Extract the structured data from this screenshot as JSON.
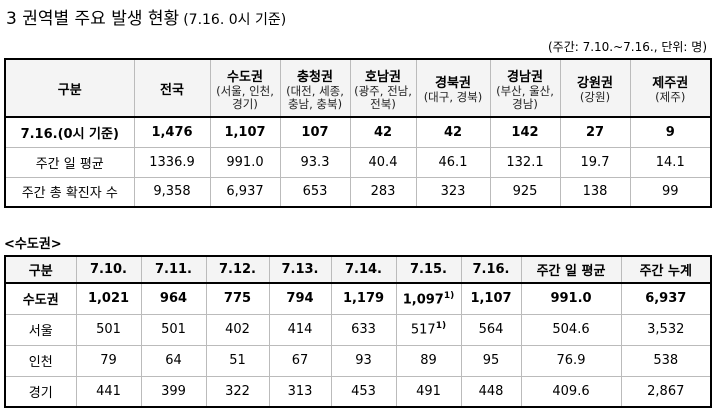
{
  "title": "3 권역별 주요 발생 현황",
  "title_note": "(7.16. 0시 기준)",
  "unit_note": "(주간: 7.10.~7.16., 단위: 명)",
  "table1": {
    "header": [
      {
        "name": "구분"
      },
      {
        "name": "전국"
      },
      {
        "name": "수도권",
        "sub": "(서울, 인천, 경기)"
      },
      {
        "name": "충청권",
        "sub": "(대전, 세종, 충남, 충북)"
      },
      {
        "name": "호남권",
        "sub": "(광주, 전남, 전북)"
      },
      {
        "name": "경북권",
        "sub": "(대구, 경북)"
      },
      {
        "name": "경남권",
        "sub": "(부산, 울산, 경남)"
      },
      {
        "name": "강원권",
        "sub": "(강원)"
      },
      {
        "name": "제주권",
        "sub": "(제주)"
      }
    ],
    "rows": [
      [
        "7.16.(0시 기준)",
        "1,476",
        "1,107",
        "107",
        "42",
        "42",
        "142",
        "27",
        "9"
      ],
      [
        "주간 일 평균",
        "1336.9",
        "991.0",
        "93.3",
        "40.4",
        "46.1",
        "132.1",
        "19.7",
        "14.1"
      ],
      [
        "주간 총 확진자 수",
        "9,358",
        "6,937",
        "653",
        "283",
        "323",
        "925",
        "138",
        "99"
      ]
    ]
  },
  "section2_label": "<수도권>",
  "table2": {
    "header": [
      "구분",
      "7.10.",
      "7.11.",
      "7.12.",
      "7.13.",
      "7.14.",
      "7.15.",
      "7.16.",
      "주간 일 평균",
      "주간 누계"
    ],
    "rows": [
      [
        "수도권",
        "1,021",
        "964",
        "775",
        "794",
        "1,179",
        {
          "text": "1,097",
          "sup": "1)"
        },
        "1,107",
        "991.0",
        "6,937"
      ],
      [
        "서울",
        "501",
        "501",
        "402",
        "414",
        "633",
        {
          "text": "517",
          "sup": "1)"
        },
        "564",
        "504.6",
        "3,532"
      ],
      [
        "인천",
        "79",
        "64",
        "51",
        "67",
        "93",
        "89",
        "95",
        "76.9",
        "538"
      ],
      [
        "경기",
        "441",
        "399",
        "322",
        "313",
        "453",
        "491",
        "448",
        "409.6",
        "2,867"
      ]
    ]
  }
}
